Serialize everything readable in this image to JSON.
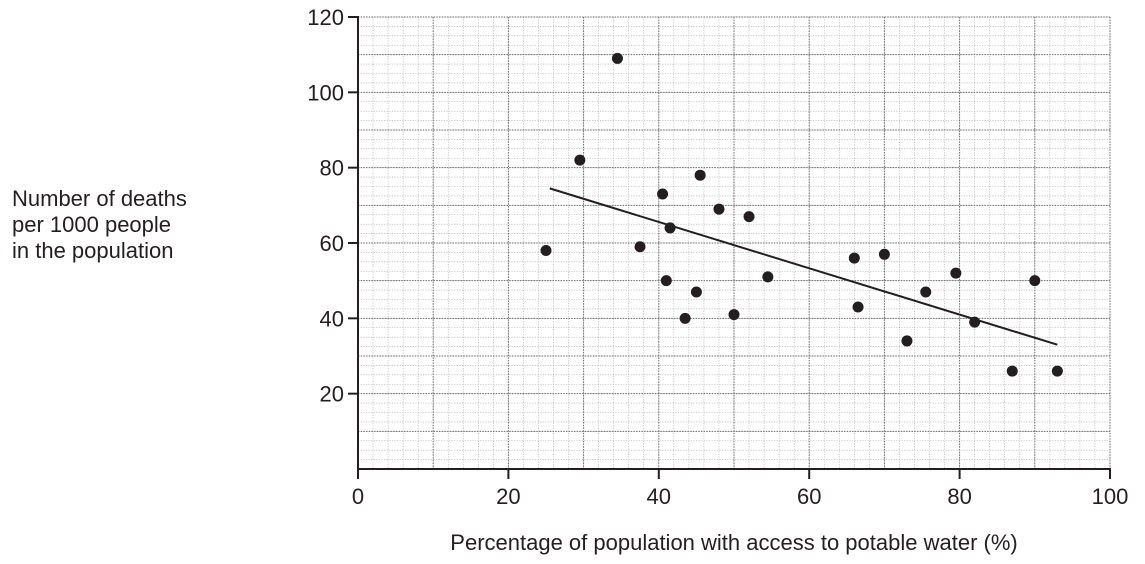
{
  "chart_data": {
    "type": "scatter",
    "title": "",
    "xlabel": "Percentage of population with access to potable water (%)",
    "ylabel_lines": [
      "Number of deaths",
      "per 1000 people",
      "in the population"
    ],
    "xlim": [
      0,
      100
    ],
    "ylim": [
      0,
      120
    ],
    "xticks": [
      0,
      20,
      40,
      60,
      80,
      100
    ],
    "yticks": [
      20,
      40,
      60,
      80,
      100,
      120
    ],
    "grid": true,
    "points": [
      {
        "x": 25.0,
        "y": 58
      },
      {
        "x": 29.5,
        "y": 82
      },
      {
        "x": 34.5,
        "y": 109
      },
      {
        "x": 37.5,
        "y": 59
      },
      {
        "x": 40.5,
        "y": 73
      },
      {
        "x": 41.5,
        "y": 64
      },
      {
        "x": 41.0,
        "y": 50
      },
      {
        "x": 43.5,
        "y": 40
      },
      {
        "x": 45.5,
        "y": 78
      },
      {
        "x": 45.0,
        "y": 47
      },
      {
        "x": 48.0,
        "y": 69
      },
      {
        "x": 50.0,
        "y": 41
      },
      {
        "x": 52.0,
        "y": 67
      },
      {
        "x": 54.5,
        "y": 51
      },
      {
        "x": 66.0,
        "y": 56
      },
      {
        "x": 66.5,
        "y": 43
      },
      {
        "x": 70.0,
        "y": 57
      },
      {
        "x": 73.0,
        "y": 34
      },
      {
        "x": 75.5,
        "y": 47
      },
      {
        "x": 79.5,
        "y": 52
      },
      {
        "x": 82.0,
        "y": 39
      },
      {
        "x": 87.0,
        "y": 26
      },
      {
        "x": 90.0,
        "y": 50
      },
      {
        "x": 93.0,
        "y": 26
      }
    ],
    "trendline": {
      "x": [
        25.5,
        93.0
      ],
      "y": [
        74.5,
        33.0
      ]
    },
    "colors": {
      "points": "#231f20",
      "grid_major": "#6d6e71",
      "grid_minor": "#a7a9ac",
      "axis": "#231f20"
    }
  }
}
